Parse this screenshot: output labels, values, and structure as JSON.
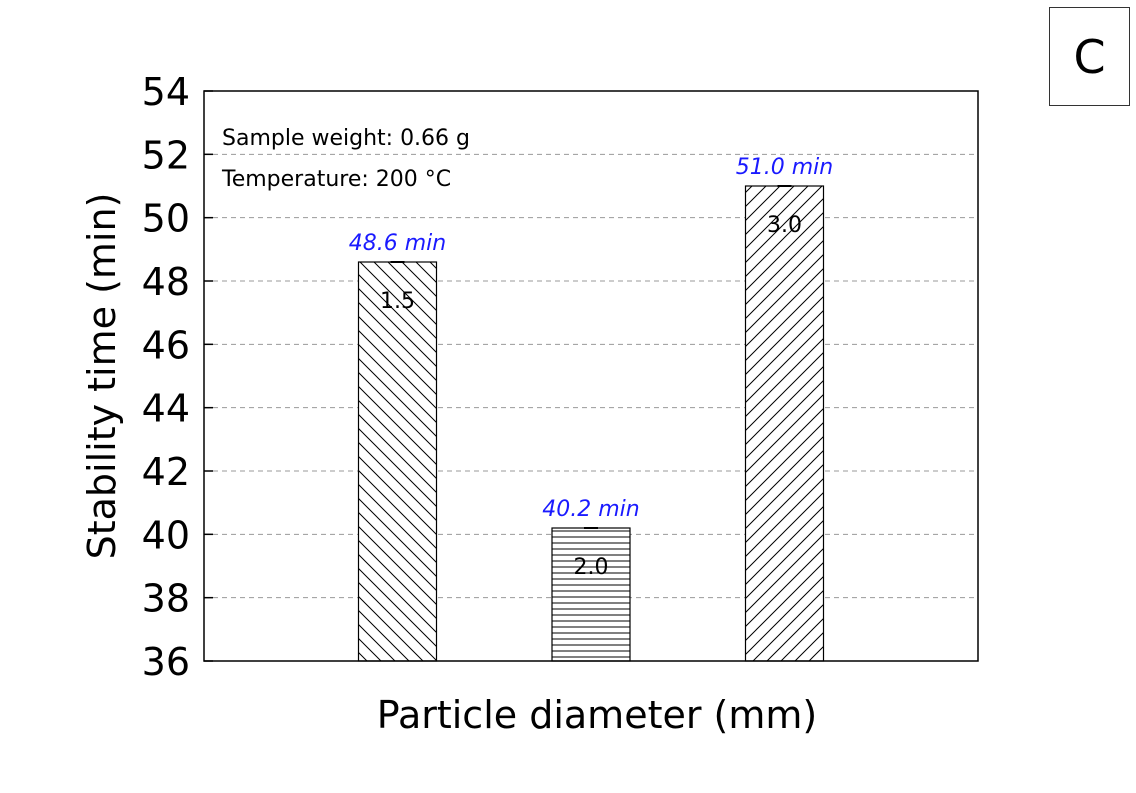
{
  "panel_label": "C",
  "chart_data": {
    "type": "bar",
    "xlabel": "Particle diameter (mm)",
    "ylabel": "Stability time (min)",
    "ylim": [
      36,
      54
    ],
    "yticks": [
      "36",
      "38",
      "40",
      "42",
      "44",
      "46",
      "48",
      "50",
      "52",
      "54"
    ],
    "grid": "horizontal dashed",
    "annotations": [
      "Sample weight: 0.66 g",
      "Temperature: 200 °C"
    ],
    "categories": [
      "1.5",
      "2.0",
      "3.0"
    ],
    "values": [
      48.6,
      40.2,
      51.0
    ],
    "value_labels": [
      "48.6 min",
      "40.2 min",
      "51.0 min"
    ],
    "value_label_color": "#1a1aff",
    "bar_patterns": [
      "backslash-hatch",
      "horizontal-hatch",
      "slash-hatch"
    ]
  }
}
